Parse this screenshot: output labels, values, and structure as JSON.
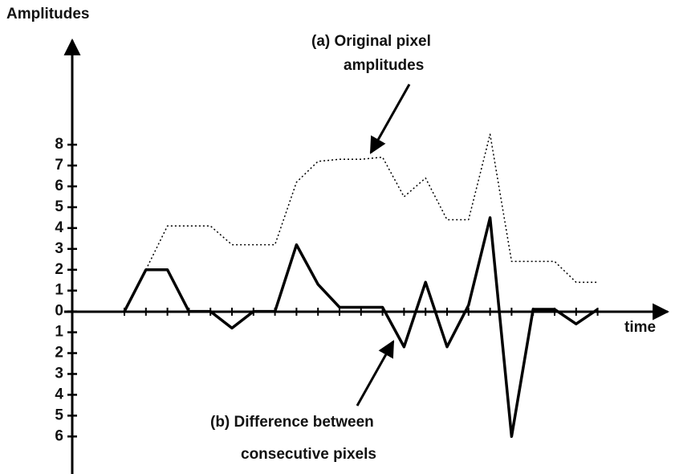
{
  "chart_data": {
    "type": "line",
    "y_label": "Amplitudes",
    "x_label": "time",
    "annotations": [
      {
        "lines": [
          "(a)  Original pixel",
          "amplitudes"
        ]
      },
      {
        "lines": [
          "(b)  Difference between",
          "consecutive pixels"
        ]
      }
    ],
    "categories": [
      null,
      null,
      null,
      null,
      null,
      null,
      null,
      null,
      null,
      null,
      null,
      null,
      null,
      null,
      null,
      null,
      null,
      null,
      null,
      null,
      null,
      null,
      null
    ],
    "series": [
      {
        "color": "#000000",
        "style": "dotted",
        "values": [
          null,
          2,
          4.1,
          4.1,
          4.1,
          3.2,
          3.2,
          3.2,
          6.2,
          7.2,
          7.3,
          7.3,
          7.4,
          5.5,
          6.4,
          4.4,
          4.4,
          8.5,
          2.4,
          2.4,
          2.4,
          1.4,
          1.4
        ]
      },
      {
        "color": "#000000",
        "style": "solid",
        "values": [
          0,
          2,
          2,
          0,
          0,
          -0.8,
          0,
          0,
          3.2,
          1.3,
          0.2,
          0.2,
          0.2,
          -1.7,
          1.4,
          -1.7,
          0.3,
          4.5,
          -6,
          0.1,
          0.1,
          -0.6,
          0.1
        ]
      }
    ],
    "ylim": [
      -7.8,
      13.4
    ],
    "yticks": [
      8,
      7,
      6,
      5,
      4,
      3,
      2,
      1,
      0,
      {
        "value": -1,
        "label": "1"
      },
      {
        "value": -2,
        "label": "2"
      },
      {
        "value": -3,
        "label": "3"
      },
      {
        "value": -4,
        "label": "4"
      },
      {
        "value": -5,
        "label": "5"
      },
      {
        "value": -6,
        "label": "6"
      }
    ]
  }
}
